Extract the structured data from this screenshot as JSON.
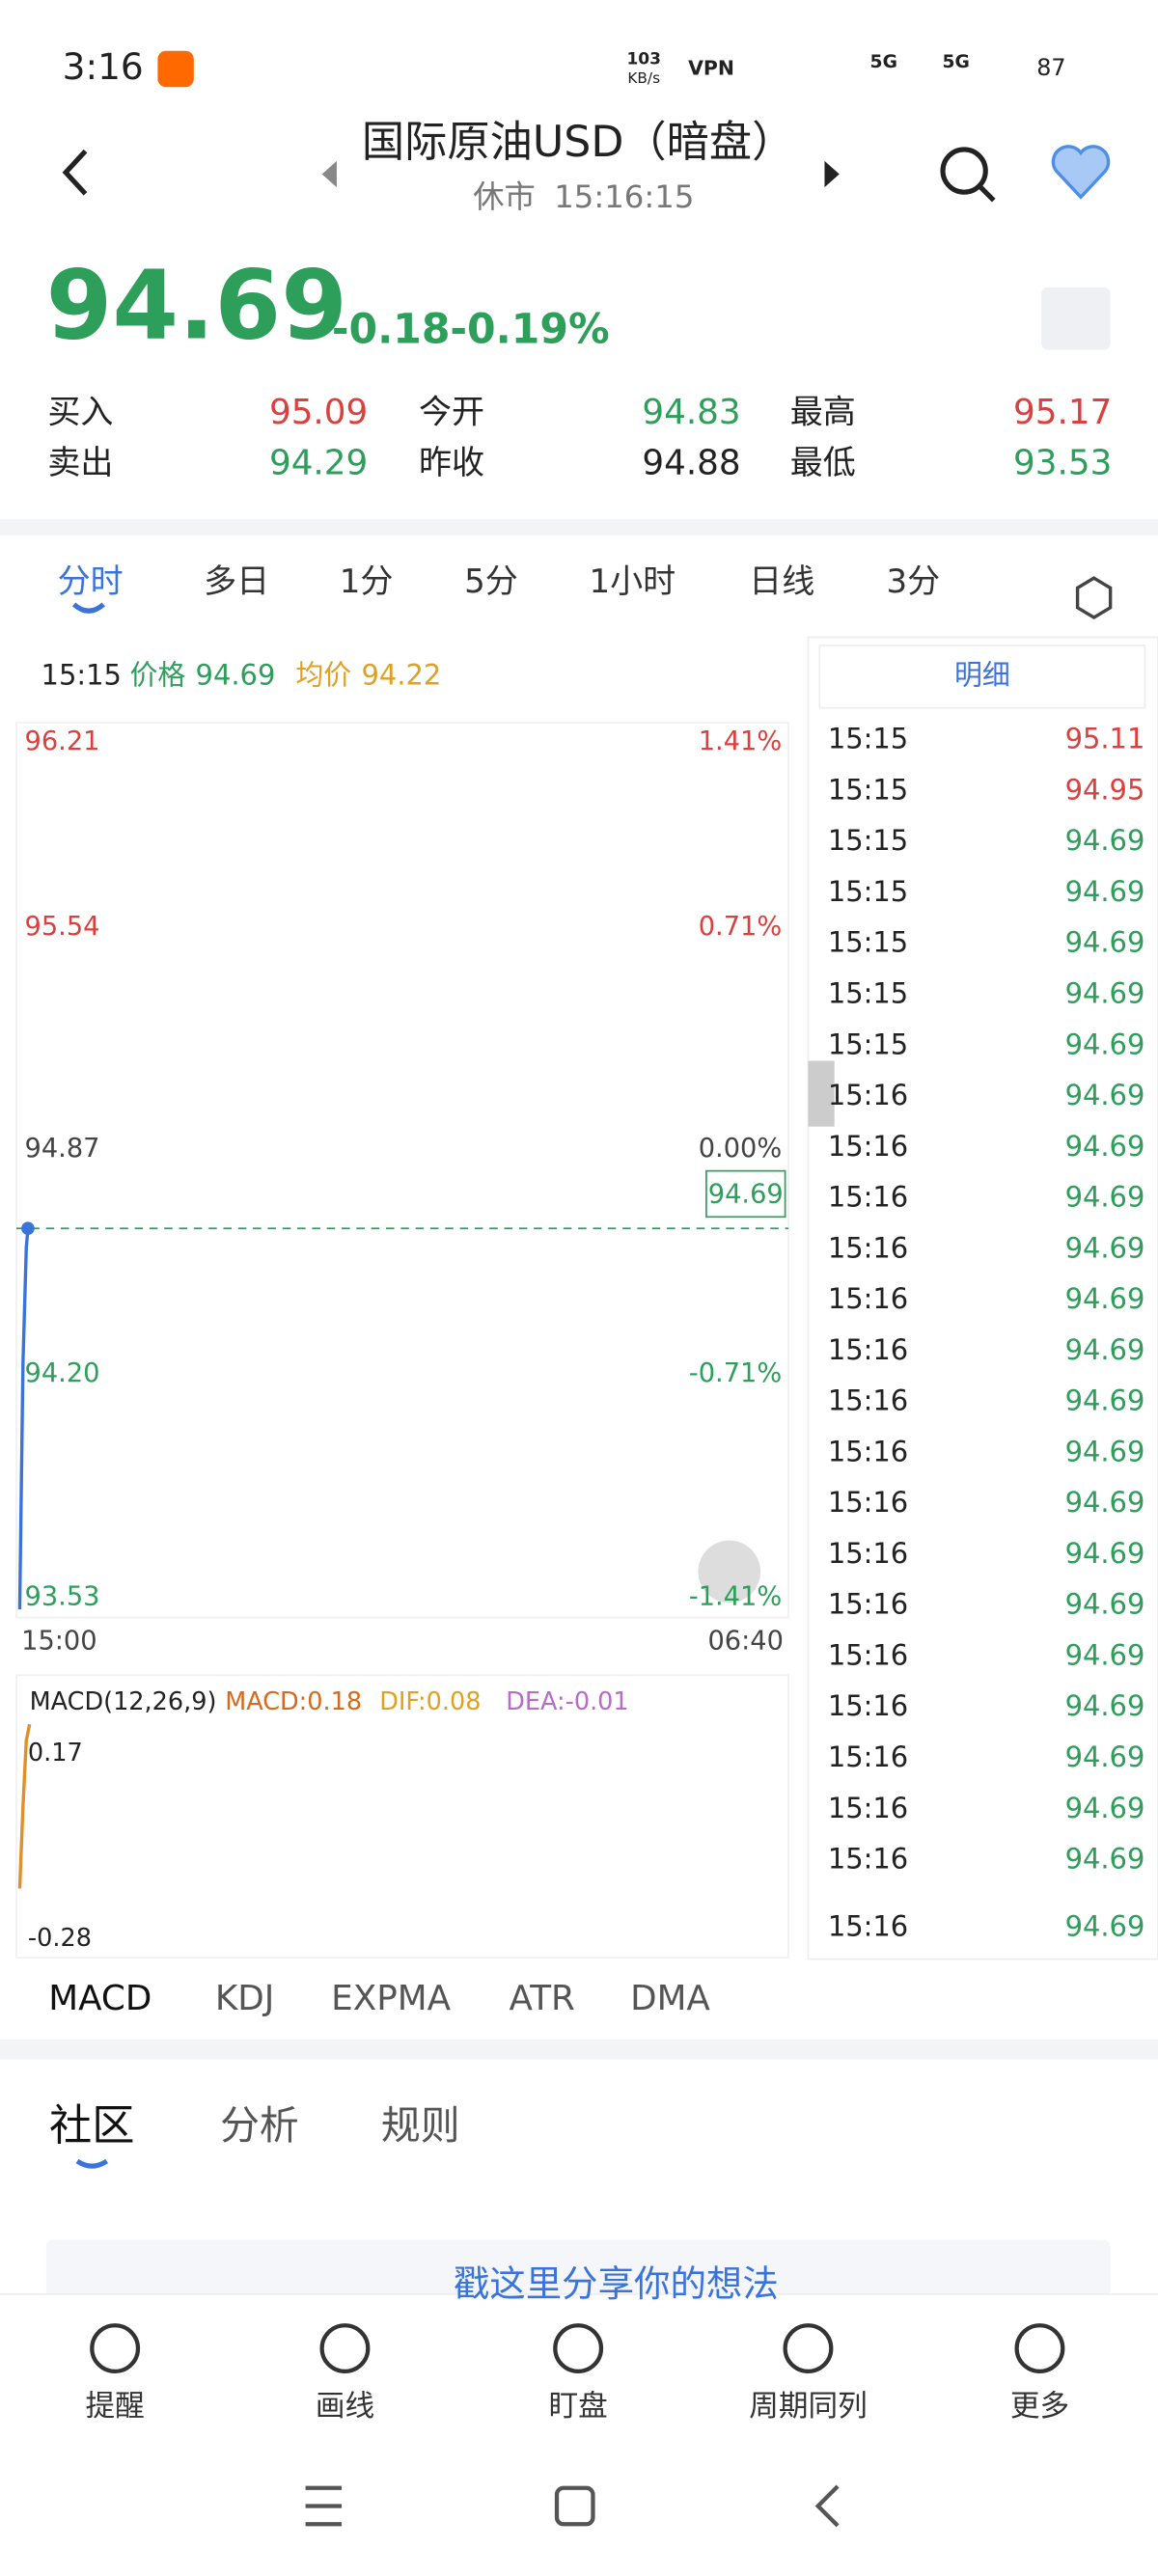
{
  "status_bar": {
    "time": "3:16",
    "speed": "103",
    "speed_unit": "KB/s",
    "vpn": "VPN",
    "net1": "5G",
    "net2": "5G",
    "battery": "87"
  },
  "header": {
    "title": "国际原油USD（暗盘）",
    "status": "休市",
    "time": "15:16:15"
  },
  "quote": {
    "price": "94.69",
    "change": "-0.18",
    "change_pct": "-0.19%"
  },
  "stats": [
    {
      "label": "买入",
      "value": "95.09"
    },
    {
      "label": "今开",
      "value": "94.83"
    },
    {
      "label": "最高",
      "value": "95.17"
    },
    {
      "label": "卖出",
      "value": "94.29"
    },
    {
      "label": "昨收",
      "value": "94.88"
    },
    {
      "label": "最低",
      "value": "93.53"
    }
  ],
  "tabs": [
    "分时",
    "多日",
    "1分",
    "5分",
    "1小时",
    "日线",
    "3分"
  ],
  "chart": {
    "time": "15:15",
    "price_label": "价格",
    "price": "94.69",
    "avg_label": "均价",
    "avg": "94.22",
    "left_axis": [
      "96.21",
      "95.54",
      "94.87",
      "94.20",
      "93.53"
    ],
    "right_axis": [
      "1.41%",
      "0.71%",
      "0.00%",
      "-0.71%",
      "-1.41%"
    ],
    "current": "94.69",
    "start_time": "15:00",
    "end_time": "06:40"
  },
  "detail": {
    "title": "明细",
    "rows": [
      [
        "15:15",
        "95.11"
      ],
      [
        "15:15",
        "94.95"
      ],
      [
        "15:15",
        "94.69"
      ],
      [
        "15:15",
        "94.69"
      ],
      [
        "15:15",
        "94.69"
      ],
      [
        "15:15",
        "94.69"
      ],
      [
        "15:15",
        "94.69"
      ],
      [
        "15:16",
        "94.69"
      ],
      [
        "15:16",
        "94.69"
      ],
      [
        "15:16",
        "94.69"
      ],
      [
        "15:16",
        "94.69"
      ],
      [
        "15:16",
        "94.69"
      ],
      [
        "15:16",
        "94.69"
      ],
      [
        "15:16",
        "94.69"
      ],
      [
        "15:16",
        "94.69"
      ],
      [
        "15:16",
        "94.69"
      ],
      [
        "15:16",
        "94.69"
      ],
      [
        "15:16",
        "94.69"
      ],
      [
        "15:16",
        "94.69"
      ],
      [
        "15:16",
        "94.69"
      ],
      [
        "15:16",
        "94.69"
      ],
      [
        "15:16",
        "94.69"
      ],
      [
        "15:16",
        "94.69"
      ],
      [
        "15:16",
        "94.69"
      ]
    ]
  },
  "macd": {
    "title": "MACD(12,26,9)",
    "macd": "MACD:0.18",
    "dif": "DIF:0.08",
    "dea": "DEA:-0.01",
    "max": "0.17",
    "min": "-0.28"
  },
  "indicator_tabs": [
    "MACD",
    "KDJ",
    "EXPMA",
    "ATR",
    "DMA"
  ],
  "community_tabs": [
    "社区",
    "分析",
    "规则"
  ],
  "post_prompt": "戳这里分享你的想法",
  "nav": [
    "提醒",
    "画线",
    "盯盘",
    "周期同列",
    "更多"
  ]
}
